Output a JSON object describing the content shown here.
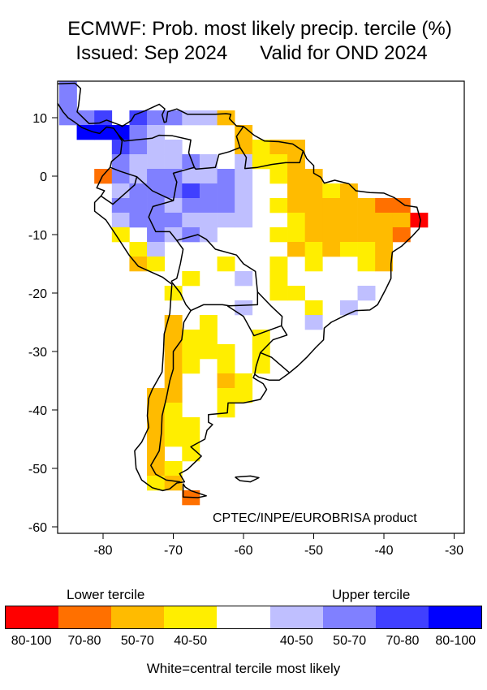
{
  "title": {
    "line1": "ECMWF: Prob. most likely precip. tercile (%)",
    "line2": "Issued: Sep 2024      Valid for OND 2024"
  },
  "credit": "CPTEC/INPE/EUROBRISA product",
  "axes": {
    "x_ticks": [
      "-80",
      "-70",
      "-60",
      "-50",
      "-40",
      "-30"
    ],
    "x_values": [
      -80,
      -70,
      -60,
      -50,
      -40,
      -30
    ],
    "y_ticks": [
      "10",
      "0",
      "-10",
      "-20",
      "-30",
      "-40",
      "-50",
      "-60"
    ],
    "y_values": [
      10,
      0,
      -10,
      -20,
      -30,
      -40,
      -50,
      -60
    ],
    "lon_range": [
      -86.5,
      -28.6
    ],
    "lat_range": [
      -61.1,
      16.25
    ]
  },
  "legend": {
    "lower_label": "Lower tercile",
    "upper_label": "Upper tercile",
    "note": "White=central tercile most likely",
    "classes": [
      {
        "code": "L4",
        "label": "80-100",
        "color": "#ff0000"
      },
      {
        "code": "L3",
        "label": "70-80",
        "color": "#ff7000"
      },
      {
        "code": "L2",
        "label": "50-70",
        "color": "#ffbb00"
      },
      {
        "code": "L1",
        "label": "40-50",
        "color": "#ffee00"
      },
      {
        "code": "C",
        "label": "",
        "color": "#ffffff"
      },
      {
        "code": "U1",
        "label": "40-50",
        "color": "#bfbfff"
      },
      {
        "code": "U2",
        "label": "50-70",
        "color": "#8080ff"
      },
      {
        "code": "U3",
        "label": "70-80",
        "color": "#4040ff"
      },
      {
        "code": "U4",
        "label": "80-100",
        "color": "#0000ff"
      }
    ]
  },
  "grid": {
    "cell_deg": 2.5,
    "rows": [
      {
        "lat": 15,
        "cells": [
          [
            -85,
            "U2"
          ]
        ]
      },
      {
        "lat": 12.5,
        "cells": [
          [
            -85,
            "U2"
          ]
        ]
      },
      {
        "lat": 10,
        "cells": [
          [
            -85,
            "U2"
          ],
          [
            -82.5,
            "U2"
          ],
          [
            -80,
            "U3"
          ],
          [
            -75,
            "U3"
          ],
          [
            -72.5,
            "U2"
          ],
          [
            -70,
            "U2"
          ],
          [
            -67.5,
            "U1"
          ],
          [
            -65,
            "U1"
          ],
          [
            -62.5,
            "L2"
          ]
        ]
      },
      {
        "lat": 7.5,
        "cells": [
          [
            -82.5,
            "U4"
          ],
          [
            -80,
            "U4"
          ],
          [
            -77.5,
            "U4"
          ],
          [
            -75,
            "U2"
          ],
          [
            -72.5,
            "U1"
          ],
          [
            -60,
            "L2"
          ]
        ]
      },
      {
        "lat": 5,
        "cells": [
          [
            -77.5,
            "U3"
          ],
          [
            -75,
            "U2"
          ],
          [
            -72.5,
            "U1"
          ],
          [
            -70,
            "U1"
          ],
          [
            -60,
            "L2"
          ],
          [
            -57.5,
            "L1"
          ],
          [
            -55,
            "L2"
          ],
          [
            -52.5,
            "L2"
          ]
        ]
      },
      {
        "lat": 2.5,
        "cells": [
          [
            -77.5,
            "U2"
          ],
          [
            -75,
            "U1"
          ],
          [
            -72.5,
            "U1"
          ],
          [
            -70,
            "U1"
          ],
          [
            -67.5,
            "U2"
          ],
          [
            -65,
            "U1"
          ],
          [
            -60,
            "U1"
          ],
          [
            -57.5,
            "L1"
          ],
          [
            -55,
            "L1"
          ],
          [
            -52.5,
            "L2"
          ]
        ]
      },
      {
        "lat": 0,
        "cells": [
          [
            -80,
            "L3"
          ],
          [
            -77.5,
            "U2"
          ],
          [
            -75,
            "U1"
          ],
          [
            -72.5,
            "U2"
          ],
          [
            -70,
            "U2"
          ],
          [
            -67.5,
            "U1"
          ],
          [
            -65,
            "U1"
          ],
          [
            -62.5,
            "U2"
          ],
          [
            -60,
            "U1"
          ],
          [
            -55,
            "L1"
          ],
          [
            -52.5,
            "L2"
          ],
          [
            -50,
            "L2"
          ]
        ]
      },
      {
        "lat": -2.5,
        "cells": [
          [
            -77.5,
            "U1"
          ],
          [
            -75,
            "U2"
          ],
          [
            -72.5,
            "U2"
          ],
          [
            -70,
            "U2"
          ],
          [
            -67.5,
            "U3"
          ],
          [
            -65,
            "U2"
          ],
          [
            -62.5,
            "U2"
          ],
          [
            -60,
            "U1"
          ],
          [
            -52.5,
            "L2"
          ],
          [
            -50,
            "L2"
          ],
          [
            -47.5,
            "L1"
          ],
          [
            -45,
            "L2"
          ]
        ]
      },
      {
        "lat": -5,
        "cells": [
          [
            -77.5,
            "U2"
          ],
          [
            -75,
            "U2"
          ],
          [
            -72.5,
            "U2"
          ],
          [
            -70,
            "U1"
          ],
          [
            -67.5,
            "U2"
          ],
          [
            -65,
            "U2"
          ],
          [
            -62.5,
            "U2"
          ],
          [
            -60,
            "U1"
          ],
          [
            -55,
            "L1"
          ],
          [
            -52.5,
            "L2"
          ],
          [
            -50,
            "L2"
          ],
          [
            -47.5,
            "L2"
          ],
          [
            -45,
            "L2"
          ],
          [
            -42.5,
            "L2"
          ],
          [
            -40,
            "L3"
          ],
          [
            -37.5,
            "L3"
          ]
        ]
      },
      {
        "lat": -7.5,
        "cells": [
          [
            -77.5,
            "U1"
          ],
          [
            -75,
            "U2"
          ],
          [
            -72.5,
            "U2"
          ],
          [
            -70,
            "U2"
          ],
          [
            -67.5,
            "U1"
          ],
          [
            -65,
            "U1"
          ],
          [
            -62.5,
            "U1"
          ],
          [
            -60,
            "U1"
          ],
          [
            -52.5,
            "L1"
          ],
          [
            -50,
            "L2"
          ],
          [
            -47.5,
            "L2"
          ],
          [
            -45,
            "L2"
          ],
          [
            -42.5,
            "L2"
          ],
          [
            -40,
            "L2"
          ],
          [
            -37.5,
            "L2"
          ],
          [
            -35,
            "L4"
          ]
        ]
      },
      {
        "lat": -10,
        "cells": [
          [
            -77.5,
            "L1"
          ],
          [
            -72.5,
            "U2"
          ],
          [
            -70,
            "U1"
          ],
          [
            -67.5,
            "U2"
          ],
          [
            -65,
            "U1"
          ],
          [
            -55,
            "L1"
          ],
          [
            -52.5,
            "L1"
          ],
          [
            -50,
            "L2"
          ],
          [
            -47.5,
            "L2"
          ],
          [
            -45,
            "L2"
          ],
          [
            -42.5,
            "L2"
          ],
          [
            -40,
            "L2"
          ],
          [
            -37.5,
            "L3"
          ]
        ]
      },
      {
        "lat": -12.5,
        "cells": [
          [
            -75,
            "L1"
          ],
          [
            -72.5,
            "U1"
          ],
          [
            -52.5,
            "L2"
          ],
          [
            -50,
            "L1"
          ],
          [
            -47.5,
            "L2"
          ],
          [
            -45,
            "L1"
          ],
          [
            -42.5,
            "L1"
          ],
          [
            -40,
            "L2"
          ]
        ]
      },
      {
        "lat": -15,
        "cells": [
          [
            -75,
            "L2"
          ],
          [
            -72.5,
            "L1"
          ],
          [
            -62.5,
            "L1"
          ],
          [
            -55,
            "L1"
          ],
          [
            -50,
            "L1"
          ],
          [
            -42.5,
            "L1"
          ],
          [
            -40,
            "L2"
          ]
        ]
      },
      {
        "lat": -17.5,
        "cells": [
          [
            -67.5,
            "L1"
          ],
          [
            -60,
            "U1"
          ],
          [
            -55,
            "L1"
          ]
        ]
      },
      {
        "lat": -20,
        "cells": [
          [
            -70,
            "L1"
          ],
          [
            -55,
            "L1"
          ],
          [
            -52.5,
            "L1"
          ],
          [
            -42.5,
            "U1"
          ]
        ]
      },
      {
        "lat": -22.5,
        "cells": [
          [
            -60,
            "U1"
          ],
          [
            -50,
            "L1"
          ],
          [
            -45,
            "U1"
          ]
        ]
      },
      {
        "lat": -25,
        "cells": [
          [
            -70,
            "L2"
          ],
          [
            -65,
            "L1"
          ],
          [
            -50,
            "U1"
          ]
        ]
      },
      {
        "lat": -27.5,
        "cells": [
          [
            -70,
            "L2"
          ],
          [
            -67.5,
            "L1"
          ],
          [
            -65,
            "L1"
          ],
          [
            -57.5,
            "L1"
          ]
        ]
      },
      {
        "lat": -30,
        "cells": [
          [
            -70,
            "L2"
          ],
          [
            -67.5,
            "L1"
          ],
          [
            -65,
            "L1"
          ],
          [
            -62.5,
            "L1"
          ],
          [
            -57.5,
            "L1"
          ]
        ]
      },
      {
        "lat": -32.5,
        "cells": [
          [
            -70,
            "L2"
          ],
          [
            -67.5,
            "L1"
          ],
          [
            -62.5,
            "L1"
          ],
          [
            -57.5,
            "L1"
          ]
        ]
      },
      {
        "lat": -35,
        "cells": [
          [
            -70,
            "L2"
          ],
          [
            -62.5,
            "L2"
          ],
          [
            -60,
            "L1"
          ]
        ]
      },
      {
        "lat": -37.5,
        "cells": [
          [
            -72.5,
            "L2"
          ],
          [
            -70,
            "L2"
          ],
          [
            -62.5,
            "L1"
          ],
          [
            -60,
            "L1"
          ]
        ]
      },
      {
        "lat": -40,
        "cells": [
          [
            -72.5,
            "L2"
          ],
          [
            -70,
            "L1"
          ],
          [
            -62.5,
            "L1"
          ]
        ]
      },
      {
        "lat": -42.5,
        "cells": [
          [
            -72.5,
            "L2"
          ],
          [
            -70,
            "L1"
          ],
          [
            -67.5,
            "L1"
          ]
        ]
      },
      {
        "lat": -45,
        "cells": [
          [
            -72.5,
            "L2"
          ],
          [
            -70,
            "L1"
          ],
          [
            -67.5,
            "L1"
          ]
        ]
      },
      {
        "lat": -47.5,
        "cells": [
          [
            -72.5,
            "L2"
          ],
          [
            -67.5,
            "L1"
          ]
        ]
      },
      {
        "lat": -50,
        "cells": [
          [
            -72.5,
            "L2"
          ],
          [
            -70,
            "L1"
          ]
        ]
      },
      {
        "lat": -52.5,
        "cells": [
          [
            -72.5,
            "L1"
          ],
          [
            -70,
            "L2"
          ]
        ]
      },
      {
        "lat": -55,
        "cells": [
          [
            -67.5,
            "L3"
          ]
        ]
      }
    ]
  }
}
